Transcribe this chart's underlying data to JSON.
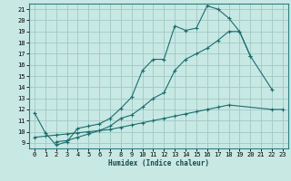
{
  "xlabel": "Humidex (Indice chaleur)",
  "xlim": [
    -0.5,
    23.5
  ],
  "ylim": [
    8.5,
    21.5
  ],
  "xticks": [
    0,
    1,
    2,
    3,
    4,
    5,
    6,
    7,
    8,
    9,
    10,
    11,
    12,
    13,
    14,
    15,
    16,
    17,
    18,
    19,
    20,
    21,
    22,
    23
  ],
  "yticks": [
    9,
    10,
    11,
    12,
    13,
    14,
    15,
    16,
    17,
    18,
    19,
    20,
    21
  ],
  "bg_color": "#c8e8e4",
  "grid_color": "#a0c8c4",
  "line_color": "#1a6e6e",
  "line1_x": [
    0,
    1,
    2,
    3,
    4,
    5,
    6,
    7,
    8,
    9,
    10,
    11,
    12,
    13,
    14,
    15,
    16,
    17,
    18,
    19,
    20
  ],
  "line1_y": [
    11.7,
    9.9,
    8.8,
    9.1,
    10.3,
    10.5,
    10.7,
    11.2,
    12.1,
    13.1,
    15.5,
    16.5,
    16.5,
    19.5,
    19.1,
    19.3,
    21.3,
    21.0,
    20.2,
    19.0,
    16.8
  ],
  "line2_x": [
    2,
    3,
    4,
    5,
    6,
    7,
    8,
    9,
    10,
    11,
    12,
    13,
    14,
    15,
    16,
    17,
    18,
    19,
    20,
    22
  ],
  "line2_y": [
    9.1,
    9.2,
    9.5,
    9.8,
    10.1,
    10.5,
    11.2,
    11.5,
    12.2,
    13.0,
    13.5,
    15.5,
    16.5,
    17.0,
    17.5,
    18.2,
    19.0,
    19.0,
    16.8,
    13.8
  ],
  "line3_x": [
    0,
    1,
    2,
    3,
    4,
    5,
    6,
    7,
    8,
    9,
    10,
    11,
    12,
    13,
    14,
    15,
    16,
    17,
    18,
    22,
    23
  ],
  "line3_y": [
    9.5,
    9.6,
    9.7,
    9.8,
    9.9,
    10.0,
    10.1,
    10.2,
    10.4,
    10.6,
    10.8,
    11.0,
    11.2,
    11.4,
    11.6,
    11.8,
    12.0,
    12.2,
    12.4,
    12.0,
    12.0
  ],
  "font_family": "monospace"
}
